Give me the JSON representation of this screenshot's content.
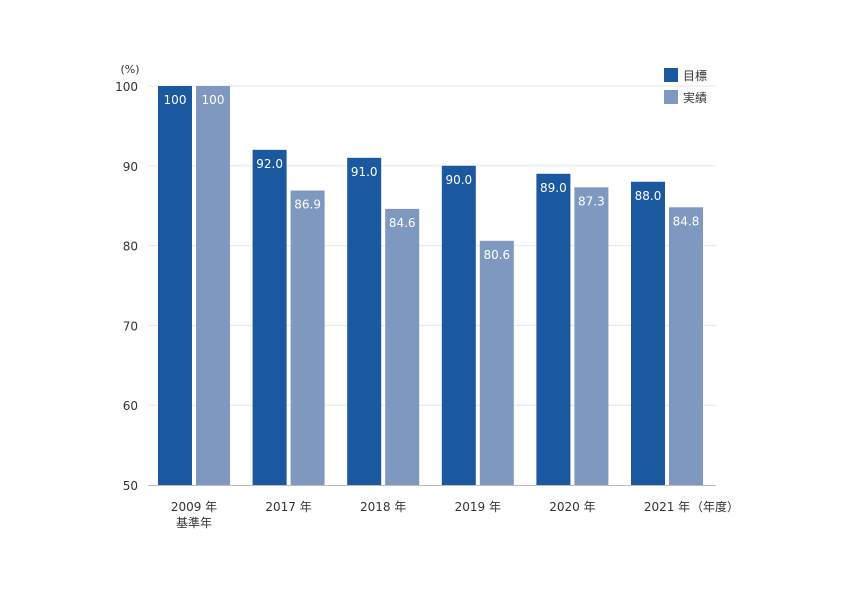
{
  "chart_data": {
    "type": "bar",
    "unit_label": "(%)",
    "x_axis_suffix": "（年度）",
    "categories": [
      [
        "2009 年",
        "基準年"
      ],
      [
        "2017 年"
      ],
      [
        "2018 年"
      ],
      [
        "2019 年"
      ],
      [
        "2020 年"
      ],
      [
        "2021 年"
      ]
    ],
    "series": [
      {
        "name": "目標",
        "color": "#1a58a0",
        "values": [
          100,
          92.0,
          91.0,
          90.0,
          89.0,
          88.0
        ],
        "labels": [
          "100",
          "92.0",
          "91.0",
          "90.0",
          "89.0",
          "88.0"
        ]
      },
      {
        "name": "実績",
        "color": "#7f98c0",
        "values": [
          100,
          86.9,
          84.6,
          80.6,
          87.3,
          84.8
        ],
        "labels": [
          "100",
          "86.9",
          "84.6",
          "80.6",
          "87.3",
          "84.8"
        ]
      }
    ],
    "yticks": [
      50,
      60,
      70,
      80,
      90,
      100
    ],
    "ylim": [
      50,
      100
    ],
    "grid": true,
    "legend": "top-right"
  }
}
